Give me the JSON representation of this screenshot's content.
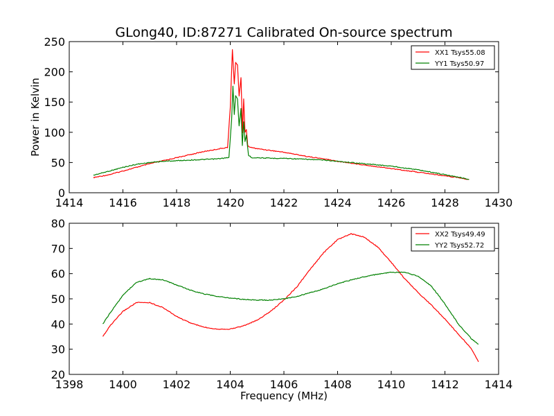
{
  "chart_data": [
    {
      "type": "line",
      "title": "GLong40, ID:87271 Calibrated On-source spectrum",
      "xlabel": "",
      "ylabel": "Power in Kelvin",
      "xlim": [
        1414,
        1430
      ],
      "ylim": [
        0,
        250
      ],
      "xticks": [
        1414,
        1416,
        1418,
        1420,
        1422,
        1424,
        1426,
        1428,
        1430
      ],
      "yticks": [
        0,
        50,
        100,
        150,
        200,
        250
      ],
      "legend_position": "top-right",
      "series": [
        {
          "name": "XX1 Tsys55.08",
          "color": "#ff0000",
          "x": [
            1414.9,
            1415.5,
            1416.0,
            1416.5,
            1417.0,
            1417.5,
            1418.0,
            1418.5,
            1419.0,
            1419.5,
            1419.9,
            1420.0,
            1420.08,
            1420.15,
            1420.2,
            1420.27,
            1420.33,
            1420.4,
            1420.46,
            1420.5,
            1420.55,
            1420.6,
            1420.65,
            1420.75,
            1421.0,
            1421.5,
            1422.0,
            1422.5,
            1423.0,
            1423.5,
            1424.0,
            1424.5,
            1425.0,
            1425.5,
            1426.0,
            1426.5,
            1427.0,
            1427.5,
            1428.0,
            1428.5,
            1428.9
          ],
          "y": [
            25,
            30,
            36,
            42,
            48,
            53,
            58,
            63,
            68,
            72,
            75,
            140,
            237,
            180,
            215,
            212,
            160,
            190,
            100,
            155,
            100,
            105,
            78,
            75,
            73,
            70,
            67,
            63,
            59,
            56,
            52,
            49,
            46,
            43,
            40,
            37,
            34,
            31,
            28,
            25,
            22
          ]
        },
        {
          "name": "YY1 Tsys50.97",
          "color": "#008000",
          "x": [
            1414.9,
            1415.5,
            1416.0,
            1416.5,
            1417.0,
            1417.5,
            1418.0,
            1418.5,
            1419.0,
            1419.5,
            1419.95,
            1420.05,
            1420.1,
            1420.15,
            1420.2,
            1420.27,
            1420.33,
            1420.4,
            1420.45,
            1420.5,
            1420.55,
            1420.6,
            1420.68,
            1420.8,
            1421.0,
            1421.5,
            1422.0,
            1422.5,
            1423.0,
            1423.5,
            1424.0,
            1424.5,
            1425.0,
            1425.5,
            1426.0,
            1426.5,
            1427.0,
            1427.5,
            1428.0,
            1428.5,
            1428.9
          ],
          "y": [
            29,
            36,
            42,
            47,
            50,
            52,
            53,
            54,
            55,
            56,
            58,
            120,
            177,
            130,
            160,
            155,
            110,
            140,
            78,
            117,
            85,
            95,
            62,
            58,
            58,
            57,
            57,
            56,
            55,
            54,
            52,
            50,
            48,
            46,
            44,
            41,
            38,
            34,
            30,
            26,
            22
          ]
        }
      ]
    },
    {
      "type": "line",
      "title": "",
      "xlabel": "Frequency (MHz)",
      "ylabel": "",
      "xlim": [
        1398,
        1414
      ],
      "ylim": [
        20,
        80
      ],
      "xticks": [
        1398,
        1400,
        1402,
        1404,
        1406,
        1408,
        1410,
        1412,
        1414
      ],
      "yticks": [
        20,
        30,
        40,
        50,
        60,
        70,
        80
      ],
      "legend_position": "top-right",
      "series": [
        {
          "name": "XX2 Tsys49.49",
          "color": "#ff0000",
          "x": [
            1399.25,
            1399.5,
            1400.0,
            1400.5,
            1401.0,
            1401.5,
            1402.0,
            1402.5,
            1403.0,
            1403.5,
            1404.0,
            1404.5,
            1405.0,
            1405.5,
            1406.0,
            1406.5,
            1407.0,
            1407.5,
            1408.0,
            1408.5,
            1409.0,
            1409.5,
            1410.0,
            1410.5,
            1411.0,
            1411.5,
            1412.0,
            1412.5,
            1413.0,
            1413.25
          ],
          "y": [
            35,
            39,
            45,
            48.5,
            48.5,
            46.5,
            43,
            40.5,
            38.8,
            38,
            38,
            39.3,
            41.5,
            45,
            49.5,
            55,
            62,
            68.5,
            73.5,
            75.8,
            74.5,
            70.5,
            64.5,
            58,
            52.5,
            47.5,
            42,
            36,
            30,
            25
          ]
        },
        {
          "name": "YY2 Tsys52.72",
          "color": "#008000",
          "x": [
            1399.25,
            1399.5,
            1400.0,
            1400.5,
            1401.0,
            1401.5,
            1402.0,
            1402.5,
            1403.0,
            1403.5,
            1404.0,
            1404.5,
            1405.0,
            1405.5,
            1406.0,
            1406.5,
            1407.0,
            1407.5,
            1408.0,
            1408.5,
            1409.0,
            1409.5,
            1410.0,
            1410.5,
            1411.0,
            1411.5,
            1412.0,
            1412.5,
            1413.0,
            1413.25
          ],
          "y": [
            40,
            44,
            51.5,
            56.5,
            58,
            57.5,
            55.5,
            53.5,
            52,
            51,
            50.3,
            49.8,
            49.5,
            49.5,
            50,
            51,
            52.5,
            54,
            56,
            57.5,
            58.8,
            59.8,
            60.5,
            60.5,
            59,
            55,
            48,
            40,
            34,
            32
          ]
        }
      ]
    }
  ]
}
